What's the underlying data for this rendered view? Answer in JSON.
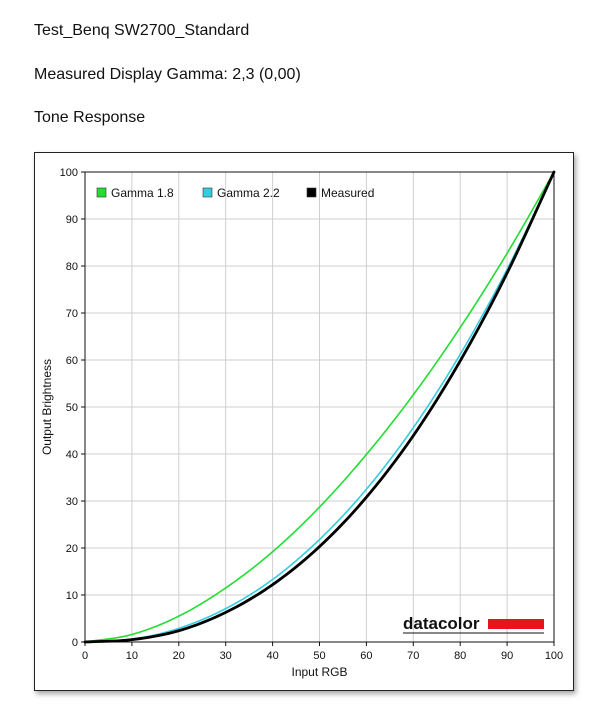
{
  "header": {
    "title": "Test_Benq SW2700_Standard",
    "gamma_line": "Measured Display Gamma: 2,3 (0,00)",
    "section": "Tone Response"
  },
  "logo": {
    "text": "datacolor",
    "bar_color": "#e8141c"
  },
  "chart_data": {
    "type": "line",
    "xlabel": "Input RGB",
    "ylabel": "Output Brightness",
    "xlim": [
      0,
      100
    ],
    "ylim": [
      0,
      100
    ],
    "x_ticks": [
      0,
      10,
      20,
      30,
      40,
      50,
      60,
      70,
      80,
      90,
      100
    ],
    "y_ticks": [
      0,
      10,
      20,
      30,
      40,
      50,
      60,
      70,
      80,
      90,
      100
    ],
    "grid": true,
    "legend_position": "top-left",
    "x": [
      0,
      10,
      20,
      30,
      40,
      50,
      60,
      70,
      80,
      90,
      100
    ],
    "series": [
      {
        "name": "Gamma 1.8",
        "color": "#22dd33",
        "values": [
          0,
          1.6,
          5.5,
          11.5,
          19.2,
          28.7,
          39.9,
          52.6,
          66.9,
          82.7,
          100
        ]
      },
      {
        "name": "Gamma 2.2",
        "color": "#33cce0",
        "values": [
          0,
          0.6,
          2.9,
          7.1,
          13.3,
          21.8,
          32.5,
          45.6,
          61.2,
          79.3,
          100
        ]
      },
      {
        "name": "Measured",
        "color": "#000000",
        "values": [
          0,
          0.5,
          2.4,
          6.3,
          12.2,
          20.3,
          30.8,
          43.9,
          59.8,
          78.5,
          100
        ]
      }
    ]
  }
}
